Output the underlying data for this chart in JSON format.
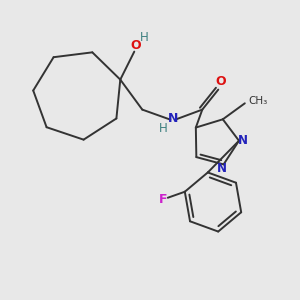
{
  "bg_color": "#e8e8e8",
  "bond_color": "#333333",
  "N_color": "#2222bb",
  "O_color": "#dd1111",
  "F_color": "#cc22cc",
  "H_color": "#3d8080",
  "figsize": [
    3.0,
    3.0
  ],
  "dpi": 100,
  "xlim": [
    0,
    300
  ],
  "ylim": [
    0,
    300
  ]
}
